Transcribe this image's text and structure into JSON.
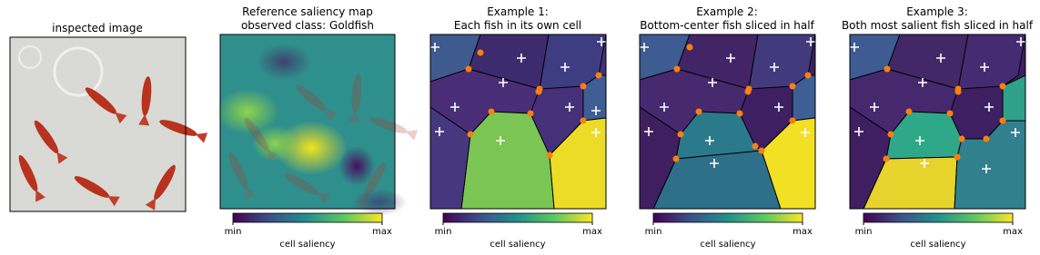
{
  "panels": [
    {
      "title": [
        "inspected image"
      ]
    },
    {
      "title": [
        "Reference saliency map",
        "observed class: Goldfish"
      ],
      "colorbar": {
        "min": "min",
        "max": "max",
        "label": "cell saliency"
      }
    },
    {
      "title": [
        "Example 1:",
        "Each fish in its own cell"
      ],
      "colorbar": {
        "min": "min",
        "max": "max",
        "label": "cell saliency"
      }
    },
    {
      "title": [
        "Example 2:",
        "Bottom-center fish sliced in half"
      ],
      "colorbar": {
        "min": "min",
        "max": "max",
        "label": "cell saliency"
      }
    },
    {
      "title": [
        "Example 3:",
        "Both most salient fish sliced in half"
      ],
      "colorbar": {
        "min": "min",
        "max": "max",
        "label": "cell saliency"
      }
    }
  ]
}
